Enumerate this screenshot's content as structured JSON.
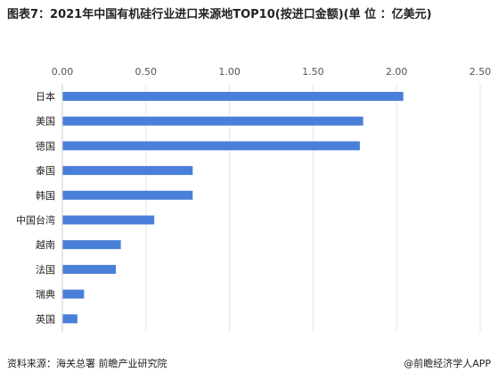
{
  "title": "图表7：2021年中国有机硅行业进口来源地TOP10(按进口金额)(单 位 ：亿美元)",
  "source": "资料来源：海关总署  前瞻产业研究院",
  "credit": "@前瞻经济学人APP",
  "colors": {
    "bar": "#4a7fd9",
    "grid": "#e6e6e6",
    "axis": "#cccccc"
  },
  "chart_data": {
    "type": "bar",
    "orientation": "horizontal",
    "categories": [
      "日本",
      "美国",
      "德国",
      "泰国",
      "韩国",
      "中国台湾",
      "越南",
      "法国",
      "瑞典",
      "英国"
    ],
    "values": [
      2.04,
      1.8,
      1.78,
      0.78,
      0.78,
      0.55,
      0.35,
      0.32,
      0.13,
      0.09
    ],
    "xlim": [
      0,
      2.5
    ],
    "ticks": [
      "0.00",
      "0.50",
      "1.00",
      "1.50",
      "2.00",
      "2.50"
    ],
    "tick_values": [
      0,
      0.5,
      1.0,
      1.5,
      2.0,
      2.5
    ],
    "grid": true,
    "legend": "none"
  }
}
